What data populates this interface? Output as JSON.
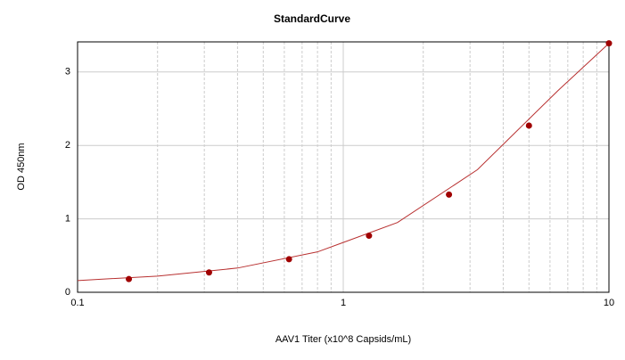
{
  "chart_data": {
    "type": "scatter",
    "title": "StandardCurve",
    "xlabel": "AAV1 Titer (x10^8 Capsids/mL)",
    "ylabel": "OD 450nm",
    "xscale": "log",
    "xlim": [
      0.1,
      10
    ],
    "ylim": [
      0,
      3.41
    ],
    "xticks": [
      0.1,
      1,
      10
    ],
    "xminorticks": [
      0.2,
      0.3,
      0.4,
      0.5,
      0.6,
      0.7,
      0.8,
      0.9,
      2,
      3,
      4,
      5,
      6,
      7,
      8,
      9
    ],
    "yticks": [
      0,
      1,
      2,
      3
    ],
    "grid": true,
    "series": [
      {
        "type": "scatter",
        "color": "#a00000",
        "x": [
          0.156,
          0.3125,
          0.625,
          1.25,
          2.5,
          5,
          10
        ],
        "values": [
          0.18,
          0.27,
          0.45,
          0.77,
          1.33,
          2.27,
          3.39
        ]
      },
      {
        "type": "line",
        "color": "#b83030",
        "x": [
          0.1,
          0.2,
          0.4,
          0.8,
          1.6,
          3.2,
          6.4,
          10
        ],
        "values": [
          0.16,
          0.22,
          0.33,
          0.55,
          0.95,
          1.67,
          2.74,
          3.39
        ]
      }
    ]
  }
}
